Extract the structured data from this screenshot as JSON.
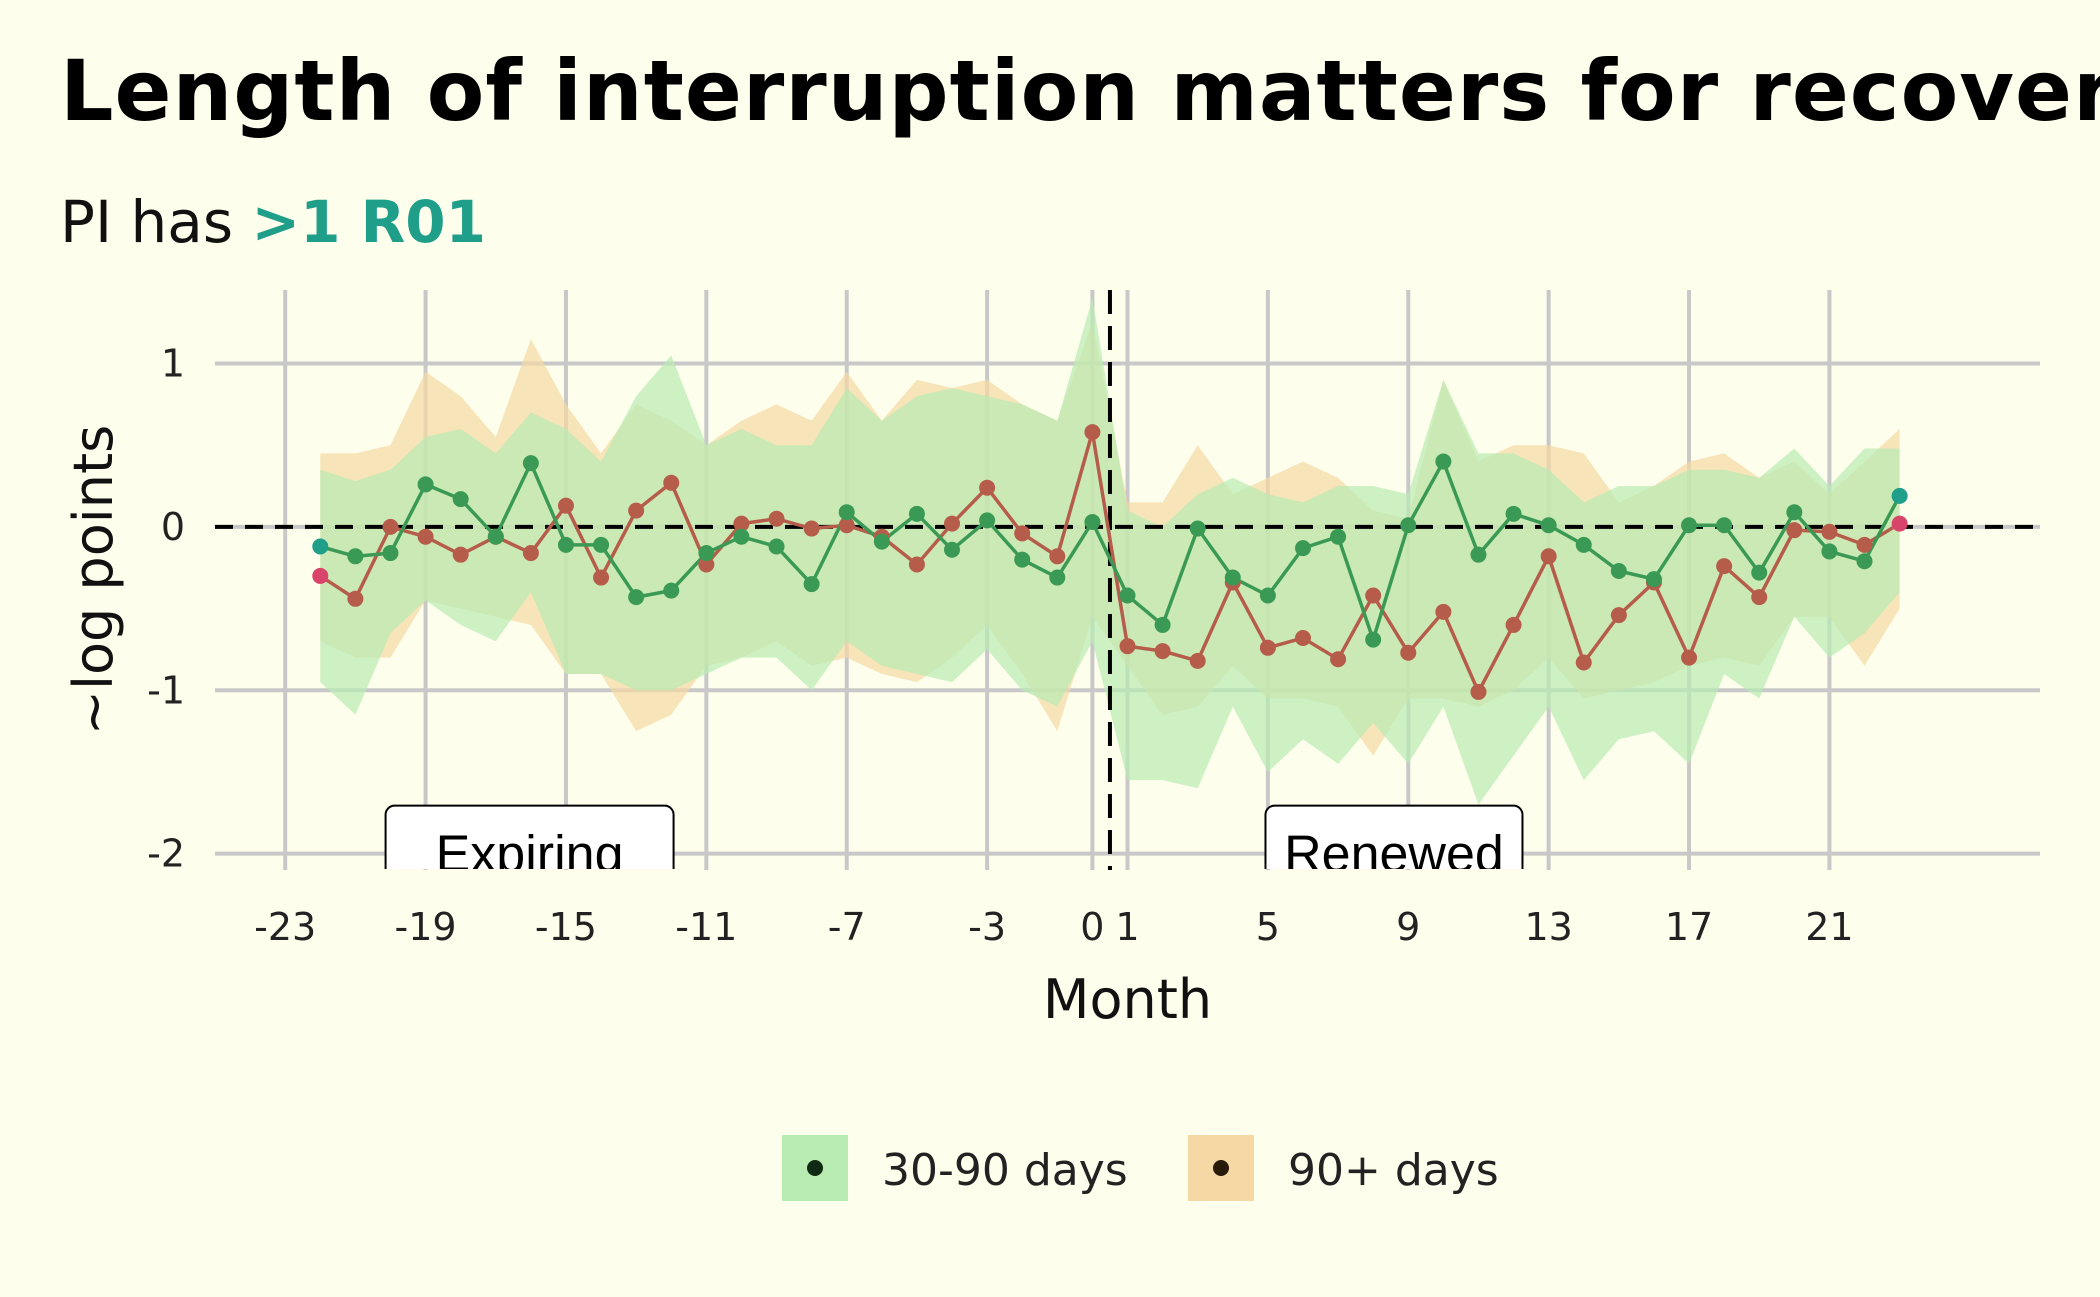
{
  "title": "Length of interruption matters for recovery",
  "subtitle": {
    "prefix": "PI has ",
    "highlight": ">1 R01"
  },
  "colors": {
    "background": "#fdfeec",
    "grid": "#c8c8c8",
    "series_a_line": "#3a9a55",
    "series_a_band": "#b8ebb2",
    "series_b_line": "#b55c4a",
    "series_b_band": "#f5d8a4",
    "highlight_text": "#1f9e89",
    "endpoint_a": "#1f9e89",
    "endpoint_b": "#d9456a"
  },
  "chart_data": {
    "type": "line",
    "xlabel": "Month",
    "ylabel": "~log points",
    "xlim": [
      -25,
      27
    ],
    "ylim": [
      -2.1,
      1.45
    ],
    "x_ticks": [
      -23,
      -19,
      -15,
      -11,
      -7,
      -3,
      0,
      1,
      5,
      9,
      13,
      17,
      21
    ],
    "y_ticks": [
      1,
      0,
      -1,
      -2
    ],
    "reference_lines": {
      "horizontal": 0,
      "vertical": 0.5
    },
    "annotations": [
      {
        "text": "Expiring",
        "x": -19,
        "y": -2.0
      },
      {
        "text": "Renewed",
        "x": 6,
        "y": -2.0
      }
    ],
    "legend": {
      "position": "bottom"
    },
    "x": [
      -22,
      -21,
      -20,
      -19,
      -18,
      -17,
      -16,
      -15,
      -14,
      -13,
      -12,
      -11,
      -10,
      -9,
      -8,
      -7,
      -6,
      -5,
      -4,
      -3,
      -2,
      -1,
      0,
      1,
      2,
      3,
      4,
      5,
      6,
      7,
      8,
      9,
      10,
      11,
      12,
      13,
      14,
      15,
      16,
      17,
      18,
      19,
      20,
      21,
      22,
      23
    ],
    "series": [
      {
        "name": "30-90 days",
        "values": [
          -0.12,
          -0.18,
          -0.16,
          0.26,
          0.17,
          -0.06,
          0.39,
          -0.11,
          -0.11,
          -0.43,
          -0.39,
          -0.16,
          -0.06,
          -0.12,
          -0.35,
          0.09,
          -0.09,
          0.08,
          -0.14,
          0.04,
          -0.2,
          -0.31,
          0.03,
          -0.42,
          -0.6,
          -0.01,
          -0.31,
          -0.42,
          -0.13,
          -0.06,
          -0.69,
          0.01,
          0.4,
          -0.17,
          0.08,
          0.01,
          -0.11,
          -0.27,
          -0.32,
          0.01,
          0.01,
          -0.28,
          0.09,
          -0.15,
          -0.21,
          0.19
        ],
        "lower": [
          -0.95,
          -1.15,
          -0.65,
          -0.45,
          -0.6,
          -0.7,
          -0.4,
          -0.9,
          -0.9,
          -1.0,
          -1.0,
          -0.9,
          -0.8,
          -0.8,
          -1.0,
          -0.7,
          -0.85,
          -0.9,
          -0.95,
          -0.75,
          -1.0,
          -1.1,
          -0.7,
          -1.55,
          -1.55,
          -1.6,
          -1.1,
          -1.5,
          -1.3,
          -1.45,
          -1.2,
          -1.45,
          -1.1,
          -1.7,
          -1.4,
          -1.1,
          -1.55,
          -1.3,
          -1.25,
          -1.45,
          -0.9,
          -1.05,
          -0.55,
          -0.8,
          -0.65,
          -0.4
        ],
        "upper": [
          0.35,
          0.28,
          0.35,
          0.55,
          0.6,
          0.45,
          0.7,
          0.6,
          0.4,
          0.8,
          1.05,
          0.5,
          0.6,
          0.5,
          0.5,
          0.85,
          0.65,
          0.8,
          0.85,
          0.8,
          0.75,
          0.65,
          1.4,
          0.1,
          0.0,
          0.2,
          0.3,
          0.2,
          0.15,
          0.25,
          0.25,
          0.2,
          0.9,
          0.45,
          0.45,
          0.35,
          0.15,
          0.25,
          0.25,
          0.35,
          0.35,
          0.3,
          0.48,
          0.25,
          0.48,
          0.48
        ]
      },
      {
        "name": "90+ days",
        "values": [
          -0.3,
          -0.44,
          0.0,
          -0.06,
          -0.17,
          -0.06,
          -0.16,
          0.13,
          -0.31,
          0.1,
          0.27,
          -0.23,
          0.02,
          0.05,
          -0.01,
          0.01,
          -0.06,
          -0.23,
          0.02,
          0.24,
          -0.04,
          -0.18,
          0.58,
          -0.73,
          -0.76,
          -0.82,
          -0.34,
          -0.74,
          -0.68,
          -0.81,
          -0.42,
          -0.77,
          -0.52,
          -1.01,
          -0.6,
          -0.18,
          -0.83,
          -0.54,
          -0.34,
          -0.8,
          -0.24,
          -0.43,
          -0.02,
          -0.03,
          -0.11,
          0.02
        ],
        "lower": [
          -0.7,
          -0.8,
          -0.8,
          -0.45,
          -0.5,
          -0.55,
          -0.6,
          -0.9,
          -0.9,
          -1.25,
          -1.15,
          -0.85,
          -0.8,
          -0.7,
          -0.85,
          -0.8,
          -0.9,
          -0.95,
          -0.8,
          -0.6,
          -0.9,
          -1.25,
          -0.55,
          -0.85,
          -1.15,
          -1.1,
          -0.85,
          -1.05,
          -1.05,
          -1.1,
          -1.4,
          -1.05,
          -1.05,
          -1.1,
          -1.0,
          -0.8,
          -1.05,
          -1.0,
          -0.95,
          -0.85,
          -0.8,
          -0.85,
          -0.55,
          -0.55,
          -0.85,
          -0.5
        ],
        "upper": [
          0.45,
          0.45,
          0.5,
          0.95,
          0.8,
          0.55,
          1.15,
          0.75,
          0.45,
          0.75,
          0.65,
          0.5,
          0.65,
          0.75,
          0.65,
          0.95,
          0.65,
          0.9,
          0.85,
          0.9,
          0.75,
          0.65,
          1.25,
          0.15,
          0.15,
          0.5,
          0.2,
          0.3,
          0.4,
          0.3,
          0.1,
          0.05,
          0.9,
          0.4,
          0.5,
          0.5,
          0.45,
          0.15,
          0.25,
          0.4,
          0.45,
          0.3,
          0.4,
          0.2,
          0.4,
          0.6
        ]
      }
    ]
  }
}
